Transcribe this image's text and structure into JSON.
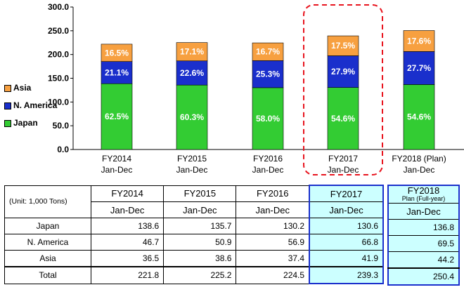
{
  "chart_data": {
    "type": "bar",
    "stacked": true,
    "categories": [
      {
        "line1": "FY2014",
        "line2": "Jan-Dec"
      },
      {
        "line1": "FY2015",
        "line2": "Jan-Dec"
      },
      {
        "line1": "FY2016",
        "line2": "Jan-Dec"
      },
      {
        "line1": "FY2017",
        "line2": "Jan-Dec"
      },
      {
        "line1": "FY2018 (Plan)",
        "line2": "Jan-Dec"
      }
    ],
    "series": [
      {
        "name": "Japan",
        "color": "#33cc33",
        "values": [
          138.6,
          135.7,
          130.2,
          130.6,
          136.8
        ],
        "labels": [
          "62.5%",
          "60.3%",
          "58.0%",
          "54.6%",
          "54.6%"
        ],
        "label_color": "#ffffff"
      },
      {
        "name": "N. America",
        "color": "#1a2fcc",
        "values": [
          46.7,
          50.9,
          56.9,
          66.8,
          69.5
        ],
        "labels": [
          "21.1%",
          "22.6%",
          "25.3%",
          "27.9%",
          "27.7%"
        ],
        "label_color": "#ffffff"
      },
      {
        "name": "Asia",
        "color": "#f7a040",
        "values": [
          36.5,
          38.6,
          37.4,
          41.9,
          44.2
        ],
        "labels": [
          "16.5%",
          "17.1%",
          "16.7%",
          "17.5%",
          "17.6%"
        ],
        "label_color": "#ffffff"
      }
    ],
    "yticks": [
      "0.0",
      "50.0",
      "100.0",
      "150.0",
      "200.0",
      "250.0",
      "300.0"
    ],
    "ylim": [
      0,
      300
    ],
    "highlight_index": 3,
    "highlight_color": "#e8141e",
    "legend_placement": "left"
  },
  "table": {
    "unit_label": "(Unit: 1,000 Tons)",
    "columns": [
      {
        "year": "FY2014",
        "period": "Jan-Dec"
      },
      {
        "year": "FY2015",
        "period": "Jan-Dec"
      },
      {
        "year": "FY2016",
        "period": "Jan-Dec"
      },
      {
        "year": "FY2017",
        "period": "Jan-Dec"
      }
    ],
    "plan_column": {
      "year": "FY2018",
      "sub": "Plan (Full-year)",
      "period": "Jan-Dec"
    },
    "rows": [
      {
        "label": "Japan",
        "values": [
          "138.6",
          "135.7",
          "130.2",
          "130.6"
        ],
        "plan": "136.8"
      },
      {
        "label": "N. America",
        "values": [
          "46.7",
          "50.9",
          "56.9",
          "66.8"
        ],
        "plan": "69.5"
      },
      {
        "label": "Asia",
        "values": [
          "36.5",
          "38.6",
          "37.4",
          "41.9"
        ],
        "plan": "44.2"
      }
    ],
    "total": {
      "label": "Total",
      "values": [
        "221.8",
        "225.2",
        "224.5",
        "239.3"
      ],
      "plan": "250.4"
    }
  }
}
